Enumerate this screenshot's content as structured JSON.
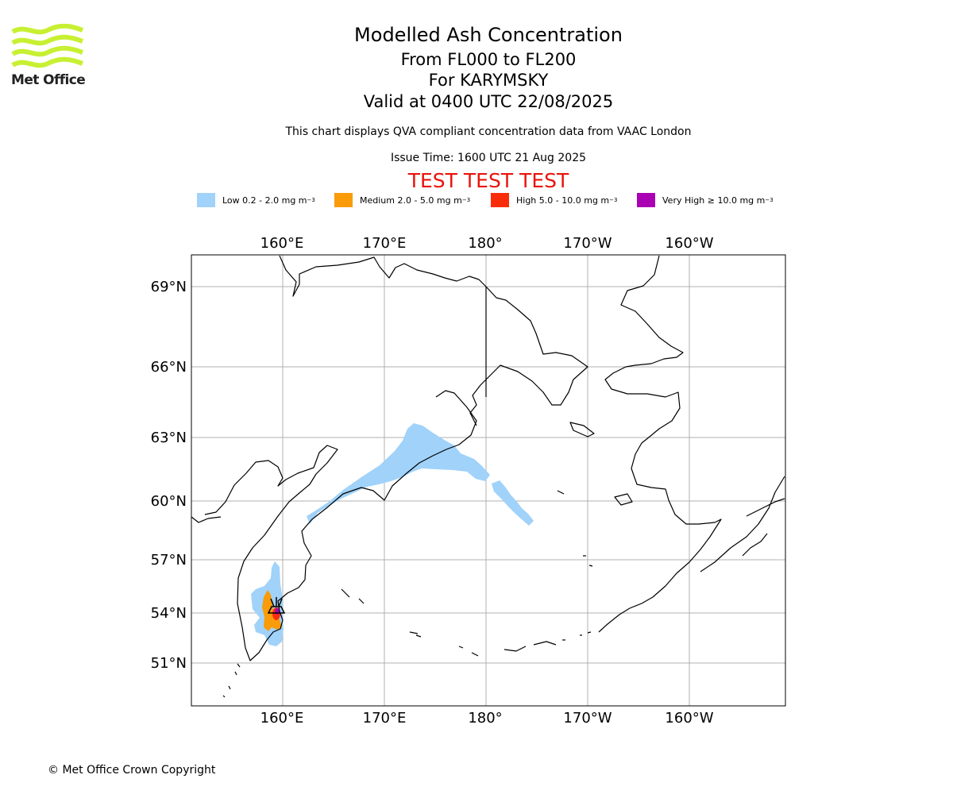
{
  "header": {
    "logo_text": "Met Office",
    "title": "Modelled Ash Concentration",
    "subtitle_levels": "From FL000 to FL200",
    "subtitle_volcano": "For KARYMSKY",
    "subtitle_valid": "Valid at 0400 UTC 22/08/2025",
    "description": "This chart displays QVA compliant concentration data from VAAC London",
    "issue_time": "Issue Time: 1600 UTC 21 Aug 2025",
    "test_banner": "TEST TEST TEST"
  },
  "legend": [
    {
      "label": "Low 0.2 - 2.0 mg m",
      "exp": "−3",
      "color": "#a0d2fa"
    },
    {
      "label": "Medium 2.0 - 5.0 mg m",
      "exp": "−3",
      "color": "#fa9b0a"
    },
    {
      "label": "High 5.0 - 10.0 mg m",
      "exp": "−3",
      "color": "#fa2d0a"
    },
    {
      "label": "Very High  ≥  10.0 mg m",
      "exp": "−3",
      "color": "#aa00b4"
    }
  ],
  "map": {
    "volcano": "KARYMSKY",
    "lon_ticks_top": [
      "160°E",
      "170°E",
      "180°",
      "170°W",
      "160°W"
    ],
    "lon_ticks_bottom": [
      "160°E",
      "170°E",
      "180°",
      "170°W",
      "160°W"
    ],
    "lat_ticks": [
      "69°N",
      "66°N",
      "63°N",
      "60°N",
      "57°N",
      "54°N",
      "51°N"
    ],
    "gridlines": true,
    "colors": {
      "grid": "#b0b0b0",
      "coast": "#000000"
    }
  },
  "footer": {
    "copyright": "© Met Office Crown Copyright"
  }
}
